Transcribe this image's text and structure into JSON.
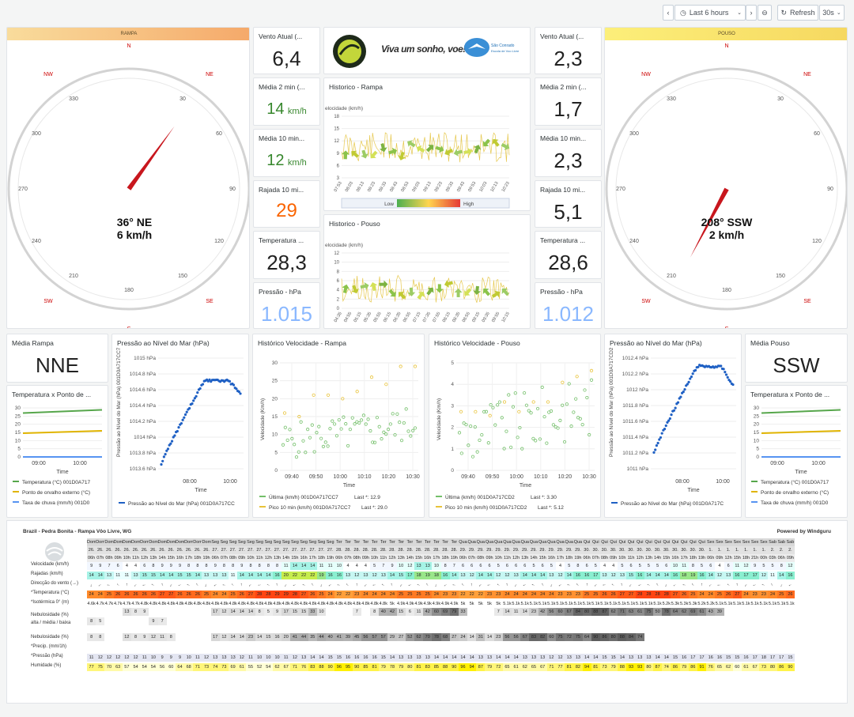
{
  "toolbar": {
    "prev_icon": "chevron-left-icon",
    "time_range": "Last 6 hours",
    "refresh_label": "Refresh",
    "interval": "30s"
  },
  "rampa": {
    "bar_label": "RAMPA",
    "compass_text": "36° NE",
    "compass_speed": "6 km/h",
    "direction_deg": 36,
    "wind_now": {
      "title": "Vento Atual (...",
      "value": "6,4"
    },
    "avg2": {
      "title": "Média 2 min (...",
      "value": "14",
      "unit": "km/h"
    },
    "avg10": {
      "title": "Média 10 min...",
      "value": "12",
      "unit": "km/h"
    },
    "gust10": {
      "title": "Rajada 10 mi...",
      "value": "29"
    },
    "temp": {
      "title": "Temperatura ...",
      "value": "28,3"
    },
    "pressure": {
      "title": "Pressão - hPa",
      "value": "1.015"
    },
    "avg_dir": {
      "title": "Média Rampa",
      "value": "NNE"
    }
  },
  "pouso": {
    "bar_label": "POUSO",
    "compass_text": "208° SSW",
    "compass_speed": "2 km/h",
    "direction_deg": 208,
    "wind_now": {
      "title": "Vento Atual (...",
      "value": "2,3"
    },
    "avg2": {
      "title": "Média 2 min (...",
      "value": "1,7"
    },
    "avg10": {
      "title": "Média 10 min...",
      "value": "2,3"
    },
    "gust10": {
      "title": "Rajada 10 mi...",
      "value": "5,1"
    },
    "temp": {
      "title": "Temperatura ...",
      "value": "28,6"
    },
    "pressure": {
      "title": "Pressão - hPa",
      "value": "1.012"
    },
    "avg_dir": {
      "title": "Média Pouso",
      "value": "SSW"
    }
  },
  "compass": {
    "cardinals": [
      "N",
      "NE",
      "SE",
      "S",
      "SW",
      "NW"
    ],
    "ticks": [
      "330",
      "30",
      "300",
      "60",
      "270",
      "90",
      "240",
      "120",
      "210",
      "150",
      "180"
    ]
  },
  "logo": {
    "slogan": "Viva um sonho, voe!",
    "school": "São Conrado",
    "school_sub": "Escola de Voo Livre"
  },
  "hist_rampa": {
    "title": "Historico - Rampa",
    "ylabel": "elocidade (km/h)",
    "low": "Low",
    "high": "High",
    "yticks": [
      "18",
      "15",
      "12",
      "9",
      "6",
      "3"
    ],
    "xticks": [
      "07:53",
      "08:03",
      "08:13",
      "08:23",
      "08:33",
      "08:43",
      "08:53",
      "09:03",
      "09:13",
      "09:23",
      "09:33",
      "09:43",
      "09:53",
      "10:03",
      "10:13",
      "10:23"
    ]
  },
  "hist_pouso": {
    "title": "Historico - Pouso",
    "ylabel": "elocidade (km/h)",
    "low": "Low",
    "high": "High",
    "yticks": [
      "12",
      "10",
      "8",
      "6",
      "4",
      "2",
      "0"
    ],
    "xticks": [
      "04:35",
      "04:55",
      "05:15",
      "05:35",
      "05:55",
      "06:15",
      "06:35",
      "06:55",
      "07:15",
      "07:35",
      "07:55",
      "08:15",
      "08:35",
      "08:55",
      "09:15",
      "09:35",
      "09:55",
      "10:15"
    ]
  },
  "temp_rampa": {
    "title": "Temperatura x Ponto de ...",
    "yticks": [
      "30",
      "25",
      "20",
      "15",
      "10",
      "5",
      "0"
    ],
    "xticks": [
      "09:00",
      "10:00"
    ],
    "xlabel": "Time",
    "legend": [
      "Temperatura (°C) 001D0A717",
      "Ponto de orvalho externo (°C)",
      "Taxa de chuva (mm/h) 001D0"
    ]
  },
  "temp_pouso": {
    "title": "Temperatura x Ponto de ...",
    "yticks": [
      "30",
      "25",
      "20",
      "15",
      "10",
      "5",
      "0"
    ],
    "xticks": [
      "09:00",
      "10:00"
    ],
    "xlabel": "Time",
    "legend": [
      "Temperatura (°C) 001D0A717",
      "Ponto de orvalho externo (°C)",
      "Taxa de chuva (mm/h) 001D0"
    ]
  },
  "press_rampa": {
    "title": "Pressão ao Nível do Mar (hPa)",
    "ylabel": "Pressão ao Nível do Mar (hPa) 001D0A717CC7",
    "yticks": [
      "1015 hPa",
      "1014.8 hPa",
      "1014.6 hPa",
      "1014.4 hPa",
      "1014.2 hPa",
      "1014 hPa",
      "1013.8 hPa",
      "1013.6 hPa"
    ],
    "xticks": [
      "08:00",
      "10:00"
    ],
    "xlabel": "Time",
    "legend": "Pressão ao Nível do Mar (hPa) 001D0A717CC"
  },
  "press_pouso": {
    "title": "Pressão ao Nível do Mar (hPa)",
    "ylabel": "Pressão ao Nível do Mar (hPa) 001D0A717CD2",
    "yticks": [
      "1012.4 hPa",
      "1012.2 hPa",
      "1012 hPa",
      "1011.8 hPa",
      "1011.6 hPa",
      "1011.4 hPa",
      "1011.2 hPa",
      "1011 hPa"
    ],
    "xticks": [
      "08:00",
      "10:00"
    ],
    "xlabel": "Time",
    "legend": "Pressão ao Nível do Mar (hPa) 001D0A717C"
  },
  "vel_rampa": {
    "title": "Histórico Velocidade - Rampa",
    "ylabel": "Velocidade (Km/h)",
    "yticks": [
      "30",
      "25",
      "20",
      "15",
      "10",
      "5",
      "0"
    ],
    "xticks": [
      "09:40",
      "09:50",
      "10:00",
      "10:10",
      "10:20",
      "10:30"
    ],
    "xlabel": "Time",
    "legend1": "Última (km/h) 001D0A717CC7",
    "last1": "Last *: 12.9",
    "legend2": "Pico 10 min (km/h) 001D0A717CC7",
    "last2": "Last *: 29.0"
  },
  "vel_pouso": {
    "title": "Histórico Velocidade - Pouso",
    "ylabel": "Velocidade (Km/h)",
    "yticks": [
      "5",
      "4",
      "3",
      "2",
      "1",
      "0"
    ],
    "xticks": [
      "09:40",
      "09:50",
      "10:00",
      "10:10",
      "10:20",
      "10:30"
    ],
    "xlabel": "Time",
    "legend1": "Última (km/h) 001D0A717CD2",
    "last1": "Last *: 3.30",
    "legend2": "Pico 10 min (km/h) 001D0A717CD2",
    "last2": "Last *: 5.12"
  },
  "windguru": {
    "place": "Brazil - Pedra Bonita - Rampa Vôo Livre, WG",
    "powered": "Powered by Windguru",
    "rows": [
      "Velocidade (km/h)",
      "Rajadas (km/h)",
      "Direcção do vento (→)",
      "*Temperatura (°C)",
      "*Isotérmica 0° (m)",
      "Nebulosidade (%)",
      "alta / média / baixa",
      "Nebulosidade (%)",
      "*Precip. (mm/1h)",
      "*Pressão (hPa)",
      "Humidade (%)"
    ],
    "days": [
      "Dom",
      "Dom",
      "Dom",
      "Dom",
      "Dom",
      "Dom",
      "Dom",
      "Dom",
      "Dom",
      "Dom",
      "Dom",
      "Dom",
      "Dom",
      "Dom",
      "Seg",
      "Seg",
      "Seg",
      "Seg",
      "Seg",
      "Seg",
      "Seg",
      "Seg",
      "Seg",
      "Seg",
      "Seg",
      "Seg",
      "Seg",
      "Seg",
      "Ter",
      "Ter",
      "Ter",
      "Ter",
      "Ter",
      "Ter",
      "Ter",
      "Ter",
      "Ter",
      "Ter",
      "Ter",
      "Ter",
      "Ter",
      "Ter",
      "Qua",
      "Qua",
      "Qua",
      "Qua",
      "Qua",
      "Qua",
      "Qua",
      "Qua",
      "Qua",
      "Qua",
      "Qua",
      "Qua",
      "Qua",
      "Qua",
      "Qui",
      "Qui",
      "Qui",
      "Qui",
      "Qui",
      "Qui",
      "Qui",
      "Qui",
      "Qui",
      "Qui",
      "Qui",
      "Qui",
      "Qui",
      "Qui",
      "Sex",
      "Sex",
      "Sex",
      "Sex",
      "Sex",
      "Sex",
      "Sex",
      "Sab",
      "Sab",
      "Sab"
    ],
    "dates": [
      "26.",
      "26.",
      "26.",
      "26.",
      "26.",
      "26.",
      "26.",
      "26.",
      "26.",
      "26.",
      "26.",
      "26.",
      "26.",
      "26.",
      "27.",
      "27.",
      "27.",
      "27.",
      "27.",
      "27.",
      "27.",
      "27.",
      "27.",
      "27.",
      "27.",
      "27.",
      "27.",
      "27.",
      "28.",
      "28.",
      "28.",
      "28.",
      "28.",
      "28.",
      "28.",
      "28.",
      "28.",
      "28.",
      "28.",
      "28.",
      "28.",
      "28.",
      "29.",
      "29.",
      "29.",
      "29.",
      "29.",
      "29.",
      "29.",
      "29.",
      "29.",
      "29.",
      "29.",
      "29.",
      "29.",
      "29.",
      "30.",
      "30.",
      "30.",
      "30.",
      "30.",
      "30.",
      "30.",
      "30.",
      "30.",
      "30.",
      "30.",
      "30.",
      "30.",
      "30.",
      "1.",
      "1.",
      "1.",
      "1.",
      "1.",
      "1.",
      "1.",
      "2.",
      "2.",
      "2."
    ],
    "hours": [
      "06h",
      "07h",
      "08h",
      "09h",
      "10h",
      "11h",
      "12h",
      "13h",
      "14h",
      "15h",
      "16h",
      "17h",
      "18h",
      "19h",
      "06h",
      "07h",
      "08h",
      "09h",
      "10h",
      "11h",
      "12h",
      "13h",
      "14h",
      "15h",
      "16h",
      "17h",
      "18h",
      "19h",
      "06h",
      "07h",
      "08h",
      "09h",
      "10h",
      "11h",
      "12h",
      "13h",
      "14h",
      "15h",
      "16h",
      "17h",
      "18h",
      "19h",
      "06h",
      "07h",
      "08h",
      "09h",
      "10h",
      "11h",
      "12h",
      "13h",
      "14h",
      "15h",
      "16h",
      "17h",
      "18h",
      "19h",
      "06h",
      "07h",
      "08h",
      "09h",
      "10h",
      "11h",
      "12h",
      "13h",
      "14h",
      "15h",
      "16h",
      "17h",
      "18h",
      "19h",
      "06h",
      "09h",
      "12h",
      "15h",
      "18h",
      "21h",
      "00h",
      "03h",
      "06h",
      "09h"
    ],
    "speed": [
      "9",
      "9",
      "7",
      "6",
      "4",
      "4",
      "6",
      "8",
      "9",
      "9",
      "9",
      "8",
      "8",
      "8",
      "9",
      "8",
      "8",
      "9",
      "8",
      "8",
      "8",
      "8",
      "11",
      "14",
      "14",
      "14",
      "11",
      "11",
      "10",
      "4",
      "4",
      "4",
      "5",
      "7",
      "9",
      "10",
      "12",
      "13",
      "13",
      "10",
      "8",
      "7",
      "6",
      "6",
      "6",
      "6",
      "5",
      "6",
      "6",
      "6",
      "5",
      "6",
      "5",
      "4",
      "5",
      "8",
      "6",
      "5",
      "4",
      "4",
      "5",
      "6",
      "5",
      "5",
      "5",
      "6",
      "10",
      "11",
      "8",
      "5",
      "6",
      "4",
      "6",
      "11",
      "12",
      "9",
      "5",
      "5",
      "8",
      "12"
    ],
    "gusts": [
      "14",
      "14",
      "13",
      "11",
      "11",
      "13",
      "15",
      "15",
      "14",
      "14",
      "15",
      "15",
      "14",
      "13",
      "13",
      "13",
      "11",
      "14",
      "14",
      "14",
      "14",
      "16",
      "20",
      "22",
      "22",
      "22",
      "19",
      "16",
      "16",
      "13",
      "12",
      "13",
      "12",
      "13",
      "14",
      "15",
      "17",
      "18",
      "19",
      "18",
      "16",
      "14",
      "13",
      "12",
      "14",
      "14",
      "12",
      "12",
      "13",
      "14",
      "14",
      "14",
      "13",
      "12",
      "14",
      "16",
      "16",
      "17",
      "13",
      "12",
      "13",
      "15",
      "16",
      "14",
      "14",
      "14",
      "16",
      "18",
      "19",
      "16",
      "14",
      "12",
      "13",
      "16",
      "17",
      "17",
      "12",
      "11",
      "14",
      "16"
    ],
    "temp": [
      "24",
      "24",
      "25",
      "26",
      "26",
      "26",
      "26",
      "26",
      "27",
      "27",
      "26",
      "26",
      "26",
      "25",
      "24",
      "24",
      "25",
      "26",
      "27",
      "28",
      "28",
      "29",
      "29",
      "28",
      "27",
      "26",
      "25",
      "24",
      "22",
      "22",
      "23",
      "24",
      "24",
      "24",
      "24",
      "25",
      "25",
      "25",
      "25",
      "24",
      "23",
      "23",
      "22",
      "22",
      "22",
      "23",
      "23",
      "24",
      "24",
      "24",
      "24",
      "24",
      "24",
      "23",
      "23",
      "23",
      "25",
      "25",
      "26",
      "26",
      "27",
      "27",
      "28",
      "28",
      "28",
      "28",
      "27",
      "26",
      "25",
      "24",
      "24",
      "25",
      "26",
      "27",
      "24",
      "23",
      "23",
      "24",
      "25",
      "26"
    ],
    "iso": [
      "4.6k",
      "4.7k",
      "4.7k",
      "4.7k",
      "4.7k",
      "4.7k",
      "4.8k",
      "4.8k",
      "4.8k",
      "4.8k",
      "4.8k",
      "4.8k",
      "4.8k",
      "4.8k",
      "4.8k",
      "4.8k",
      "4.8k",
      "4.8k",
      "4.8k",
      "4.8k",
      "4.8k",
      "4.8k",
      "4.8k",
      "4.8k",
      "4.8k",
      "4.8k",
      "4.8k",
      "4.8k",
      "4.8k",
      "4.8k",
      "4.8k",
      "4.8k",
      "4.8k",
      "4.8k",
      "5k",
      "4.9k",
      "4.9k",
      "4.9k",
      "4.9k",
      "4.9k",
      "4.9k",
      "4.9k",
      "5k",
      "5k",
      "5k",
      "5k",
      "5k",
      "5.1k",
      "5.1k",
      "5.1k",
      "5.1k",
      "5.1k",
      "5.1k",
      "5.1k",
      "5.1k",
      "5.1k",
      "5.1k",
      "5.1k",
      "5.1k",
      "5.1k",
      "5.1k",
      "5.1k",
      "5.1k",
      "5.1k",
      "5.1k",
      "5.2k",
      "5.3k",
      "5.3k",
      "5.3k",
      "5.2k",
      "5.2k",
      "5.1k",
      "5.1k",
      "5.1k",
      "5.1k",
      "5.1k",
      "5.1k",
      "5.1k",
      "5.1k",
      "5.1k"
    ],
    "cloud_high": [
      "",
      "",
      "",
      "",
      "13",
      "8",
      "9",
      "",
      "",
      "",
      "",
      "",
      "",
      "",
      "17",
      "12",
      "14",
      "14",
      "14",
      "8",
      "5",
      "9",
      "17",
      "15",
      "15",
      "33",
      "10",
      "",
      "",
      "",
      "7",
      "",
      "8",
      "40",
      "42",
      "15",
      "6",
      "11",
      "42",
      "60",
      "69",
      "79",
      "33",
      "",
      "",
      "",
      "7",
      "14",
      "11",
      "14",
      "23",
      "42",
      "56",
      "60",
      "67",
      "84",
      "80",
      "88",
      "87",
      "62",
      "71",
      "63",
      "61",
      "75",
      "50",
      "78",
      "64",
      "62",
      "69",
      "61",
      "43",
      "39",
      "",
      "",
      "",
      "",
      "",
      "",
      "",
      "",
      "",
      ""
    ],
    "cloud_low": [
      "8",
      "5",
      "",
      "",
      "",
      "",
      "",
      "9",
      "7",
      "",
      "",
      "",
      "",
      "",
      "",
      "",
      "",
      "",
      "",
      "",
      "",
      "",
      "",
      "",
      "",
      "",
      "",
      "",
      "",
      "",
      "",
      "",
      "",
      "",
      "",
      "",
      "",
      "",
      "",
      "",
      "",
      "",
      "",
      "",
      "",
      "",
      "",
      "",
      "",
      "",
      "",
      "",
      "",
      "",
      "",
      "",
      "",
      "",
      "",
      "",
      "",
      "",
      "",
      "",
      "",
      "",
      "",
      "",
      "",
      "",
      "",
      "",
      "",
      "",
      "",
      "",
      "",
      "",
      ""
    ],
    "cloud_total": [
      "8",
      "8",
      "",
      "",
      "12",
      "8",
      "9",
      "12",
      "11",
      "8",
      "",
      "",
      "",
      "",
      "17",
      "12",
      "14",
      "14",
      "23",
      "14",
      "15",
      "16",
      "20",
      "41",
      "44",
      "35",
      "44",
      "40",
      "41",
      "39",
      "45",
      "56",
      "57",
      "57",
      "29",
      "27",
      "52",
      "62",
      "70",
      "78",
      "68",
      "27",
      "24",
      "14",
      "31",
      "14",
      "23",
      "56",
      "56",
      "67",
      "83",
      "82",
      "60",
      "75",
      "72",
      "75",
      "64",
      "90",
      "86",
      "80",
      "88",
      "84",
      "74",
      "",
      "",
      "",
      "",
      "",
      "",
      "",
      "",
      "",
      "",
      "",
      "",
      "",
      "",
      "",
      ""
    ],
    "pressure": [
      "11",
      "12",
      "12",
      "12",
      "12",
      "12",
      "11",
      "10",
      "9",
      "9",
      "9",
      "10",
      "11",
      "12",
      "13",
      "13",
      "13",
      "12",
      "11",
      "10",
      "10",
      "10",
      "11",
      "12",
      "13",
      "14",
      "14",
      "15",
      "15",
      "16",
      "16",
      "16",
      "16",
      "15",
      "14",
      "13",
      "13",
      "13",
      "13",
      "14",
      "14",
      "14",
      "14",
      "14",
      "13",
      "13",
      "14",
      "14",
      "14",
      "13",
      "13",
      "13",
      "12",
      "12",
      "13",
      "13",
      "14",
      "14",
      "15",
      "15",
      "14",
      "13",
      "13",
      "13",
      "14",
      "14",
      "15",
      "16",
      "17",
      "17",
      "16",
      "16",
      "15",
      "15",
      "16",
      "17",
      "18",
      "17",
      "17",
      "15"
    ],
    "humid": [
      "77",
      "75",
      "70",
      "63",
      "57",
      "54",
      "54",
      "54",
      "56",
      "60",
      "64",
      "68",
      "71",
      "73",
      "74",
      "73",
      "69",
      "61",
      "55",
      "52",
      "54",
      "62",
      "67",
      "71",
      "76",
      "83",
      "88",
      "90",
      "96",
      "95",
      "90",
      "85",
      "81",
      "79",
      "78",
      "79",
      "80",
      "81",
      "83",
      "85",
      "88",
      "90",
      "96",
      "94",
      "87",
      "79",
      "72",
      "65",
      "61",
      "62",
      "65",
      "67",
      "71",
      "77",
      "81",
      "82",
      "94",
      "81",
      "73",
      "79",
      "88",
      "93",
      "93",
      "80",
      "87",
      "74",
      "86",
      "79",
      "86",
      "91",
      "76",
      "65",
      "62",
      "60",
      "61",
      "67",
      "73",
      "80",
      "86",
      "90"
    ]
  }
}
